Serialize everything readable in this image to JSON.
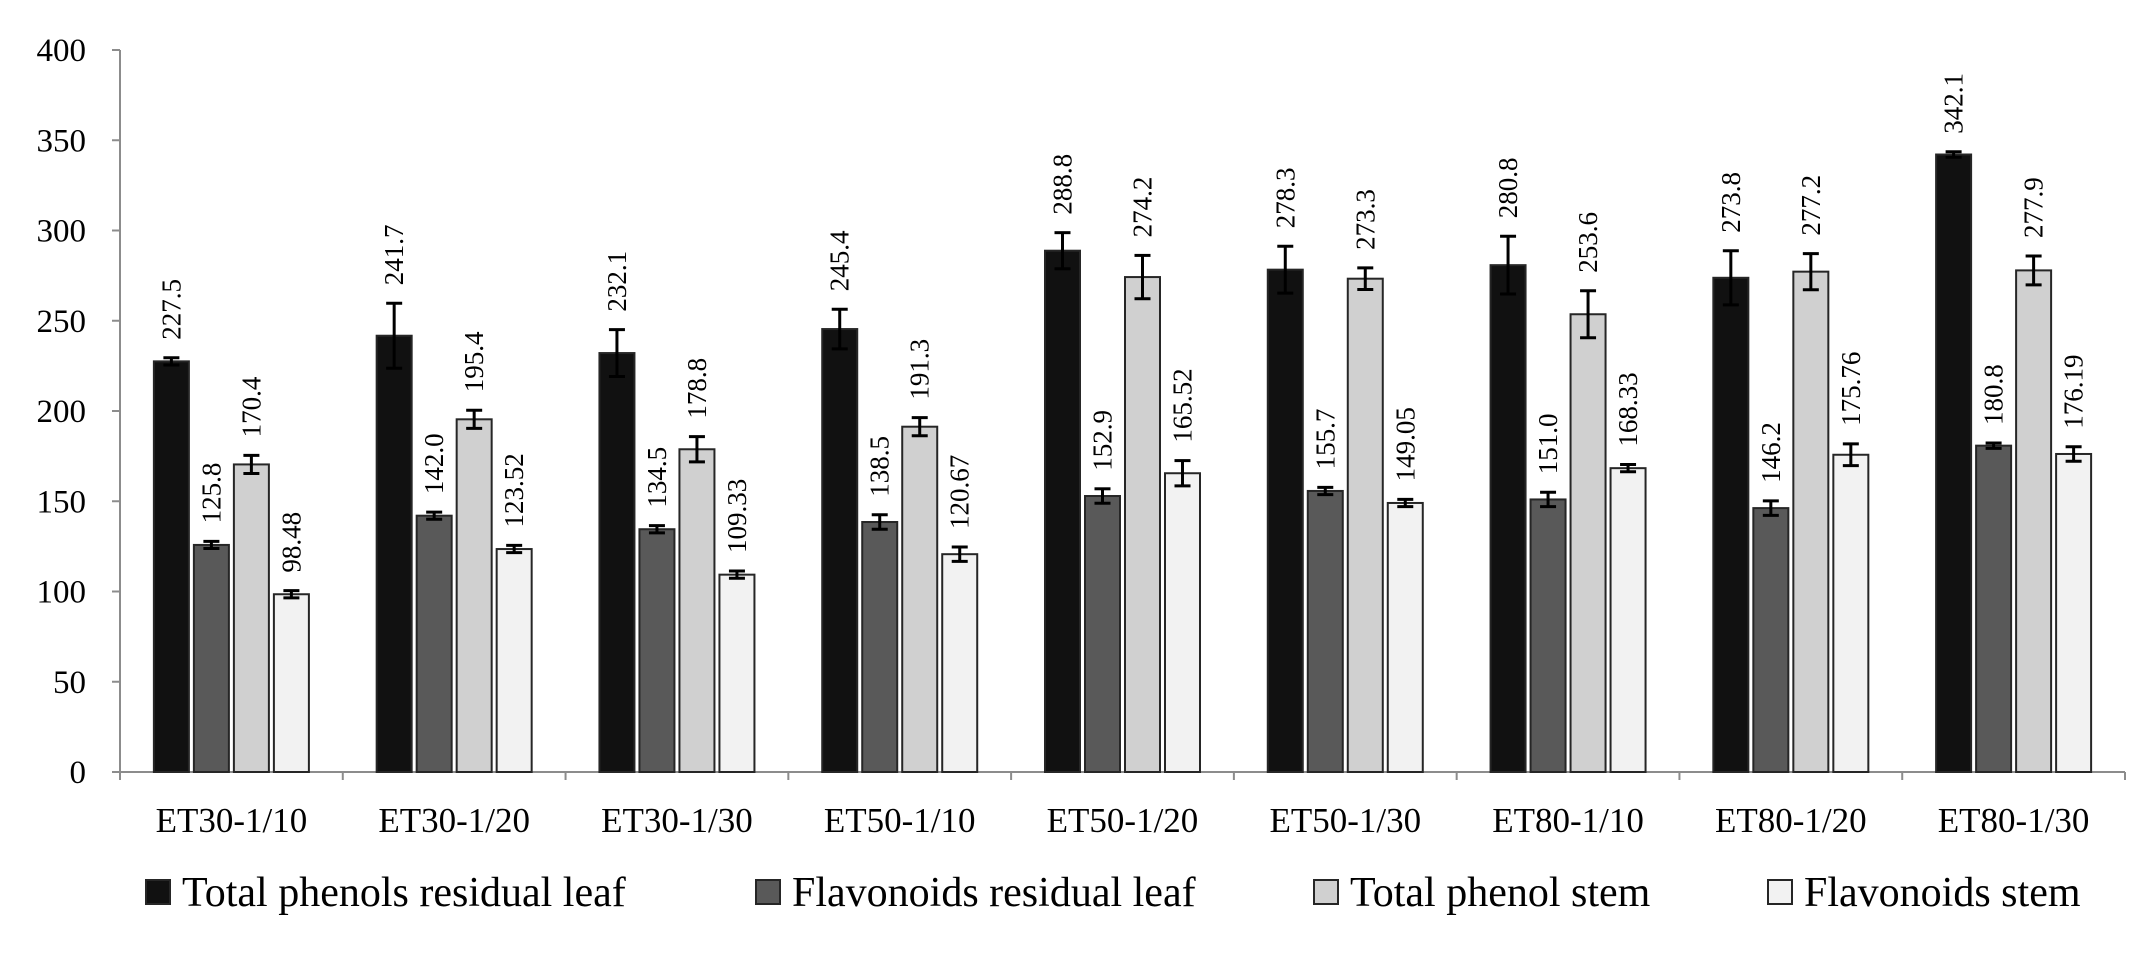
{
  "chart_data": {
    "type": "bar",
    "title": "",
    "xlabel": "",
    "ylabel": "",
    "ylim": [
      0,
      400
    ],
    "yticks": [
      0,
      50,
      100,
      150,
      200,
      250,
      300,
      350,
      400
    ],
    "grid": false,
    "legend_position": "bottom",
    "categories": [
      "ET30-1/10",
      "ET30-1/20",
      "ET30-1/30",
      "ET50-1/10",
      "ET50-1/20",
      "ET50-1/30",
      "ET80-1/10",
      "ET80-1/20",
      "ET80-1/30"
    ],
    "series": [
      {
        "name": "Total phenols residual leaf",
        "color": "#111111",
        "values": [
          227.5,
          241.7,
          232.1,
          245.4,
          288.8,
          278.3,
          280.8,
          273.8,
          342.1
        ],
        "labels": [
          "227.5",
          "241.7",
          "232.1",
          "245.4",
          "288.8",
          "278.3",
          "280.8",
          "273.8",
          "342.1"
        ],
        "errors": [
          2,
          18,
          13,
          11,
          10,
          13,
          16,
          15,
          1.5
        ]
      },
      {
        "name": "Flavonoids residual leaf",
        "color": "#595959",
        "values": [
          125.8,
          142.0,
          134.5,
          138.5,
          152.9,
          155.7,
          151.0,
          146.2,
          180.8
        ],
        "labels": [
          "125.8",
          "142.0",
          "134.5",
          "138.5",
          "152.9",
          "155.7",
          "151.0",
          "146.2",
          "180.8"
        ],
        "errors": [
          2,
          2,
          2,
          4,
          4,
          2,
          4,
          4,
          1.5
        ]
      },
      {
        "name": "Total phenol stem",
        "color": "#d0d0d0",
        "values": [
          170.4,
          195.4,
          178.8,
          191.3,
          274.2,
          273.3,
          253.6,
          277.2,
          277.9
        ],
        "labels": [
          "170.4",
          "195.4",
          "178.8",
          "191.3",
          "274.2",
          "273.3",
          "253.6",
          "277.2",
          "277.9"
        ],
        "errors": [
          5,
          5,
          7,
          5,
          12,
          6,
          13,
          10,
          8
        ]
      },
      {
        "name": "Flavonoids stem",
        "color": "#f2f2f2",
        "values": [
          98.48,
          123.52,
          109.33,
          120.67,
          165.52,
          149.05,
          168.33,
          175.76,
          176.19
        ],
        "labels": [
          "98.48",
          "123.52",
          "109.33",
          "120.67",
          "165.52",
          "149.05",
          "168.33",
          "175.76",
          "176.19"
        ],
        "errors": [
          2,
          2,
          2,
          4,
          7,
          2,
          2,
          6,
          4
        ]
      }
    ]
  }
}
